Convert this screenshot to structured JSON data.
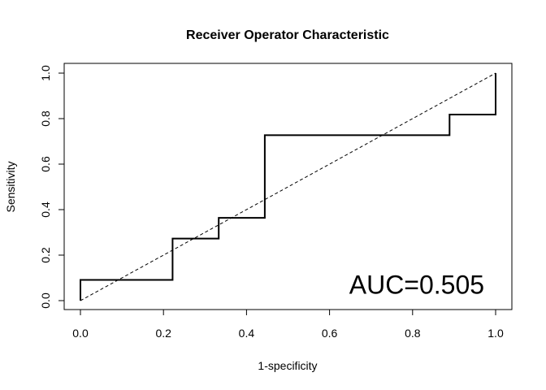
{
  "chart_data": {
    "type": "line",
    "title": "Receiver Operator Characteristic",
    "xlabel": "1-specificity",
    "ylabel": "Sensitivity",
    "xlim": [
      0,
      1
    ],
    "ylim": [
      0,
      1
    ],
    "x_ticks": [
      "0.0",
      "0.2",
      "0.4",
      "0.6",
      "0.8",
      "1.0"
    ],
    "y_ticks": [
      "0.0",
      "0.2",
      "0.4",
      "0.6",
      "0.8",
      "1.0"
    ],
    "grid": false,
    "series": [
      {
        "style": "solid",
        "color": "#000000",
        "points": [
          [
            0.0,
            0.0
          ],
          [
            0.0,
            0.091
          ],
          [
            0.222,
            0.091
          ],
          [
            0.222,
            0.273
          ],
          [
            0.333,
            0.273
          ],
          [
            0.333,
            0.364
          ],
          [
            0.444,
            0.364
          ],
          [
            0.444,
            0.727
          ],
          [
            0.889,
            0.727
          ],
          [
            0.889,
            0.818
          ],
          [
            1.0,
            0.818
          ],
          [
            1.0,
            1.0
          ]
        ]
      },
      {
        "style": "dashed",
        "color": "#000000",
        "points": [
          [
            0.0,
            0.0
          ],
          [
            1.0,
            1.0
          ]
        ]
      }
    ],
    "annotation": {
      "text": "AUC=0.505",
      "x": 0.81,
      "y": 0.07
    }
  }
}
